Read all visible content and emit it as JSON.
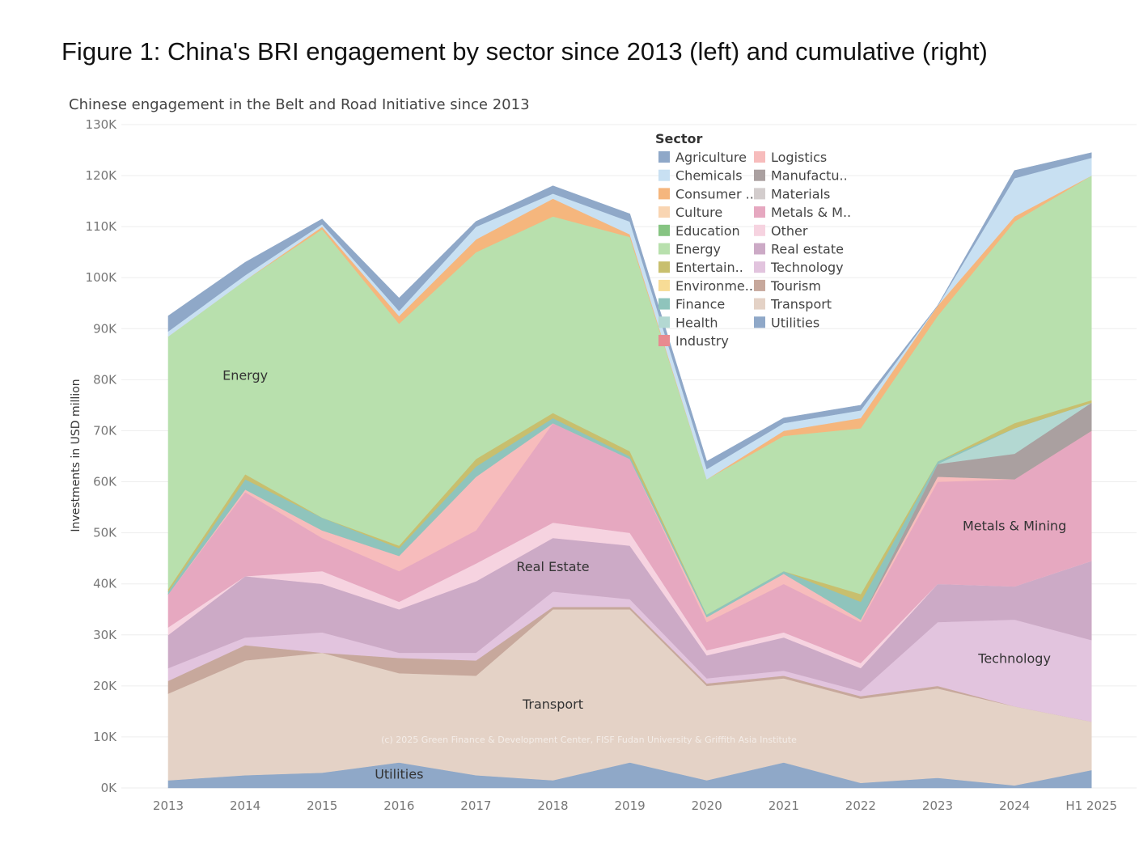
{
  "figure_title": "Figure 1: China's BRI engagement by sector since 2013 (left) and cumulative (right)",
  "chart_data": {
    "type": "area",
    "stacked": true,
    "title": "Chinese engagement in the Belt and Road Initiative since 2013",
    "xlabel": "",
    "ylabel": "Investments in USD million",
    "ylim": [
      0,
      130000
    ],
    "y_ticks": [
      "0K",
      "10K",
      "20K",
      "30K",
      "40K",
      "50K",
      "60K",
      "70K",
      "80K",
      "90K",
      "100K",
      "110K",
      "120K",
      "130K"
    ],
    "grid": true,
    "categories": [
      "2013",
      "2014",
      "2015",
      "2016",
      "2017",
      "2018",
      "2019",
      "2020",
      "2021",
      "2022",
      "2023",
      "2024",
      "H1 2025"
    ],
    "legend": {
      "title": "Sector",
      "placement": "top-right",
      "entries": [
        "Agriculture",
        "Chemicals",
        "Consumer ..",
        "Culture",
        "Education",
        "Energy",
        "Entertain..",
        "Environme..",
        "Finance",
        "Health",
        "Industry",
        "Logistics",
        "Manufactu..",
        "Materials",
        "Metals & M..",
        "Other",
        "Real estate",
        "Technology",
        "Tourism",
        "Transport",
        "Utilities"
      ]
    },
    "series": [
      {
        "name": "Utilities",
        "color": "#8fa8c8",
        "values": [
          1500,
          2500,
          3000,
          5000,
          2500,
          1500,
          5000,
          1500,
          5000,
          1000,
          2000,
          500,
          3500
        ]
      },
      {
        "name": "Transport",
        "color": "#e4d2c6",
        "values": [
          17000,
          22500,
          23500,
          17500,
          19500,
          33500,
          30000,
          18500,
          16500,
          16500,
          17500,
          15500,
          9500
        ]
      },
      {
        "name": "Tourism",
        "color": "#c7a89c",
        "values": [
          2500,
          3000,
          0,
          3000,
          3000,
          500,
          500,
          500,
          500,
          500,
          500,
          0,
          0
        ]
      },
      {
        "name": "Technology",
        "color": "#e2c4de",
        "values": [
          2500,
          1500,
          4000,
          1000,
          1500,
          3000,
          1500,
          1000,
          1000,
          1000,
          12500,
          17000,
          16000
        ]
      },
      {
        "name": "Real estate",
        "color": "#ccaac6",
        "values": [
          6500,
          12000,
          9500,
          8500,
          14000,
          10500,
          10500,
          4500,
          6500,
          4500,
          7500,
          6500,
          15500
        ]
      },
      {
        "name": "Other",
        "color": "#f6d3e0",
        "values": [
          1500,
          0,
          2500,
          1500,
          3500,
          3000,
          2500,
          1000,
          1000,
          1000,
          0,
          0,
          0
        ]
      },
      {
        "name": "Metals & Mining",
        "color": "#e6a8c0",
        "values": [
          6500,
          16500,
          6500,
          6000,
          6500,
          19500,
          14500,
          5500,
          9500,
          8000,
          20000,
          21000,
          25500
        ]
      },
      {
        "name": "Logistics",
        "color": "#f7bcbc",
        "values": [
          0,
          500,
          1500,
          3000,
          10500,
          0,
          0,
          1000,
          2000,
          500,
          1000,
          0,
          0
        ]
      },
      {
        "name": "Manufacturing",
        "color": "#aaa0a0",
        "values": [
          0,
          0,
          0,
          0,
          0,
          0,
          0,
          0,
          0,
          0,
          2500,
          5000,
          5500
        ]
      },
      {
        "name": "Health",
        "color": "#b3d8d2",
        "values": [
          0,
          0,
          0,
          0,
          0,
          0,
          0,
          0,
          0,
          0,
          0,
          5000,
          0
        ]
      },
      {
        "name": "Finance",
        "color": "#8fc4bc",
        "values": [
          500,
          2000,
          2500,
          1500,
          2000,
          1000,
          500,
          500,
          500,
          3500,
          500,
          0,
          0
        ]
      },
      {
        "name": "Entertainment",
        "color": "#c8bf6e",
        "values": [
          500,
          1000,
          0,
          500,
          1500,
          1000,
          1000,
          0,
          0,
          1500,
          0,
          1000,
          500
        ]
      },
      {
        "name": "Energy",
        "color": "#b8e0ad",
        "values": [
          49500,
          38000,
          56500,
          43500,
          40500,
          38500,
          42000,
          26500,
          26500,
          32500,
          28500,
          39500,
          44000
        ]
      },
      {
        "name": "Consumer Goods",
        "color": "#f5b67d",
        "values": [
          0,
          0,
          500,
          1500,
          2500,
          3500,
          500,
          0,
          1000,
          2000,
          2000,
          1000,
          0
        ]
      },
      {
        "name": "Chemicals",
        "color": "#c8e0f2",
        "values": [
          1000,
          1000,
          500,
          1000,
          2500,
          1000,
          2500,
          2000,
          1500,
          1500,
          0,
          7500,
          3500
        ]
      },
      {
        "name": "Agriculture",
        "color": "#8fa8c8",
        "values": [
          3000,
          2500,
          1000,
          2500,
          1000,
          1500,
          1500,
          1500,
          1000,
          1000,
          0,
          1500,
          1000
        ]
      }
    ],
    "annotations": [
      {
        "text": "Energy",
        "x": "2014",
        "y": 80000
      },
      {
        "text": "Real Estate",
        "x": "2018",
        "y": 42500
      },
      {
        "text": "Metals & Mining",
        "x": "2024",
        "y": 50500
      },
      {
        "text": "Technology",
        "x": "2024",
        "y": 24500
      },
      {
        "text": "Transport",
        "x": "2018",
        "y": 15500
      },
      {
        "text": "Utilities",
        "x": "2016",
        "y": 1800
      }
    ],
    "watermark": "(c) 2025 Green Finance & Development Center, FISF Fudan University & Griffith Asia Institute"
  }
}
